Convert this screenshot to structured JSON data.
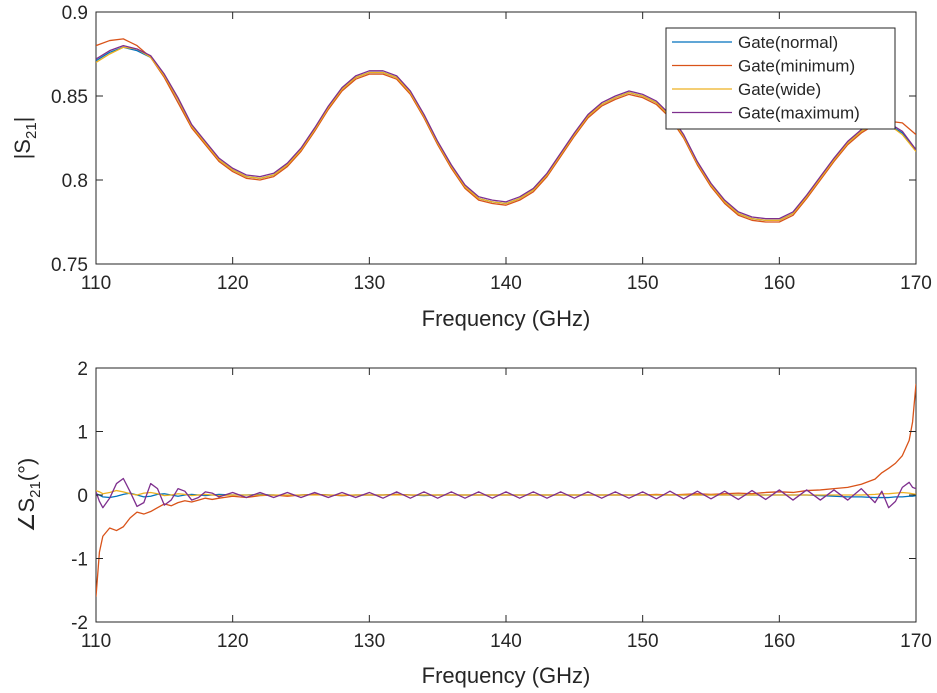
{
  "colors": {
    "normal": "#0072BD",
    "minimum": "#D95319",
    "wide": "#EDB120",
    "maximum": "#7E2F8E",
    "axis": "#262626",
    "background": "#ffffff"
  },
  "legend": {
    "placement": "top-right",
    "entries": [
      "Gate(normal)",
      "Gate(minimum)",
      "Gate(wide)",
      "Gate(maximum)"
    ]
  },
  "chart_data": [
    {
      "type": "line",
      "title": "",
      "xlabel": "Frequency (GHz)",
      "ylabel": "|S21|",
      "ylabel_parts": {
        "prefix": "|S",
        "sub": "21",
        "suffix": "|"
      },
      "xlim": [
        110,
        170
      ],
      "ylim": [
        0.75,
        0.9
      ],
      "xticks": [
        110,
        120,
        130,
        140,
        150,
        160,
        170
      ],
      "xtick_labels": [
        "110",
        "120",
        "130",
        "140",
        "150",
        "160",
        "170"
      ],
      "yticks": [
        0.75,
        0.8,
        0.85,
        0.9
      ],
      "ytick_labels": [
        "0.75",
        "0.8",
        "0.85",
        "0.9"
      ],
      "grid": false,
      "legend": "top-right",
      "x": [
        110,
        111,
        112,
        113,
        114,
        115,
        116,
        117,
        118,
        119,
        120,
        121,
        122,
        123,
        124,
        125,
        126,
        127,
        128,
        129,
        130,
        131,
        132,
        133,
        134,
        135,
        136,
        137,
        138,
        139,
        140,
        141,
        142,
        143,
        144,
        145,
        146,
        147,
        148,
        149,
        150,
        151,
        152,
        153,
        154,
        155,
        156,
        157,
        158,
        159,
        160,
        161,
        162,
        163,
        164,
        165,
        166,
        167,
        168,
        169,
        170
      ],
      "series": [
        {
          "name": "Gate(normal)",
          "values": [
            0.871,
            0.876,
            0.879,
            0.877,
            0.873,
            0.862,
            0.848,
            0.832,
            0.822,
            0.812,
            0.806,
            0.802,
            0.801,
            0.803,
            0.809,
            0.818,
            0.83,
            0.843,
            0.854,
            0.861,
            0.864,
            0.864,
            0.861,
            0.852,
            0.838,
            0.822,
            0.808,
            0.796,
            0.789,
            0.787,
            0.786,
            0.789,
            0.794,
            0.803,
            0.815,
            0.827,
            0.838,
            0.845,
            0.849,
            0.852,
            0.85,
            0.846,
            0.838,
            0.826,
            0.81,
            0.797,
            0.787,
            0.78,
            0.777,
            0.776,
            0.776,
            0.78,
            0.79,
            0.801,
            0.812,
            0.822,
            0.829,
            0.834,
            0.833,
            0.828,
            0.818
          ]
        },
        {
          "name": "Gate(minimum)",
          "values": [
            0.88,
            0.883,
            0.884,
            0.88,
            0.873,
            0.861,
            0.846,
            0.831,
            0.821,
            0.811,
            0.805,
            0.801,
            0.8,
            0.802,
            0.808,
            0.817,
            0.829,
            0.842,
            0.853,
            0.86,
            0.863,
            0.863,
            0.86,
            0.851,
            0.837,
            0.821,
            0.807,
            0.795,
            0.788,
            0.786,
            0.785,
            0.788,
            0.793,
            0.802,
            0.814,
            0.826,
            0.837,
            0.844,
            0.848,
            0.851,
            0.849,
            0.845,
            0.837,
            0.825,
            0.809,
            0.796,
            0.786,
            0.779,
            0.776,
            0.775,
            0.775,
            0.779,
            0.789,
            0.8,
            0.811,
            0.821,
            0.828,
            0.833,
            0.835,
            0.834,
            0.827
          ]
        },
        {
          "name": "Gate(wide)",
          "values": [
            0.87,
            0.875,
            0.879,
            0.878,
            0.873,
            0.862,
            0.848,
            0.832,
            0.822,
            0.812,
            0.806,
            0.802,
            0.801,
            0.803,
            0.809,
            0.818,
            0.83,
            0.843,
            0.854,
            0.861,
            0.864,
            0.864,
            0.861,
            0.852,
            0.838,
            0.822,
            0.808,
            0.796,
            0.789,
            0.787,
            0.786,
            0.789,
            0.794,
            0.803,
            0.815,
            0.827,
            0.838,
            0.845,
            0.849,
            0.852,
            0.85,
            0.846,
            0.838,
            0.826,
            0.81,
            0.797,
            0.787,
            0.78,
            0.777,
            0.776,
            0.776,
            0.78,
            0.79,
            0.801,
            0.812,
            0.822,
            0.829,
            0.834,
            0.833,
            0.827,
            0.817
          ]
        },
        {
          "name": "Gate(maximum)",
          "values": [
            0.872,
            0.877,
            0.88,
            0.878,
            0.874,
            0.863,
            0.849,
            0.833,
            0.823,
            0.813,
            0.807,
            0.803,
            0.802,
            0.804,
            0.81,
            0.819,
            0.831,
            0.844,
            0.855,
            0.862,
            0.865,
            0.865,
            0.862,
            0.853,
            0.839,
            0.823,
            0.809,
            0.797,
            0.79,
            0.788,
            0.787,
            0.79,
            0.795,
            0.804,
            0.816,
            0.828,
            0.839,
            0.846,
            0.85,
            0.853,
            0.851,
            0.847,
            0.839,
            0.827,
            0.811,
            0.798,
            0.788,
            0.781,
            0.778,
            0.777,
            0.777,
            0.781,
            0.791,
            0.802,
            0.813,
            0.823,
            0.83,
            0.835,
            0.834,
            0.829,
            0.818
          ]
        }
      ]
    },
    {
      "type": "line",
      "title": "",
      "xlabel": "Frequency (GHz)",
      "ylabel": "∠S21(°)",
      "ylabel_parts": {
        "prefix": "∠S",
        "sub": "21",
        "suffix": "(°)"
      },
      "xlim": [
        110,
        170
      ],
      "ylim": [
        -2,
        2
      ],
      "xticks": [
        110,
        120,
        130,
        140,
        150,
        160,
        170
      ],
      "xtick_labels": [
        "110",
        "120",
        "130",
        "140",
        "150",
        "160",
        "170"
      ],
      "yticks": [
        -2,
        -1,
        0,
        1,
        2
      ],
      "ytick_labels": [
        "-2",
        "-1",
        "0",
        "1",
        "2"
      ],
      "grid": false,
      "x": [
        110,
        110.25,
        110.5,
        111,
        111.5,
        112,
        112.5,
        113,
        113.5,
        114,
        114.5,
        115,
        115.5,
        116,
        116.5,
        117,
        117.5,
        118,
        118.5,
        119,
        120,
        121,
        122,
        123,
        124,
        125,
        126,
        127,
        128,
        129,
        130,
        131,
        132,
        133,
        134,
        135,
        136,
        137,
        138,
        139,
        140,
        141,
        142,
        143,
        144,
        145,
        146,
        147,
        148,
        149,
        150,
        151,
        152,
        153,
        154,
        155,
        156,
        157,
        158,
        159,
        160,
        161,
        162,
        163,
        164,
        165,
        166,
        167,
        167.5,
        168,
        168.5,
        169,
        169.5,
        169.75,
        170
      ],
      "series": [
        {
          "name": "Gate(normal)",
          "values": [
            0.02,
            0.0,
            -0.03,
            -0.04,
            -0.02,
            0.01,
            0.03,
            0.0,
            -0.03,
            -0.02,
            0.01,
            0.02,
            0.0,
            -0.02,
            0.0,
            0.01,
            0.0,
            -0.01,
            0.0,
            0.01,
            0.0,
            0.0,
            0.01,
            0.0,
            -0.01,
            0.0,
            0.01,
            0.0,
            -0.01,
            0.0,
            0.0,
            0.0,
            0.01,
            0.0,
            -0.01,
            0.0,
            0.0,
            0.0,
            0.0,
            0.0,
            0.0,
            0.0,
            0.0,
            0.0,
            0.0,
            0.0,
            0.0,
            0.0,
            0.0,
            0.0,
            0.0,
            0.0,
            0.0,
            0.0,
            0.0,
            0.0,
            0.0,
            0.0,
            0.0,
            0.0,
            0.0,
            0.0,
            0.0,
            -0.01,
            -0.02,
            -0.03,
            -0.03,
            -0.04,
            -0.04,
            -0.04,
            -0.03,
            -0.03,
            -0.02,
            -0.02,
            -0.01
          ]
        },
        {
          "name": "Gate(minimum)",
          "values": [
            -1.6,
            -0.9,
            -0.65,
            -0.52,
            -0.56,
            -0.5,
            -0.36,
            -0.27,
            -0.3,
            -0.26,
            -0.2,
            -0.14,
            -0.17,
            -0.12,
            -0.09,
            -0.11,
            -0.08,
            -0.05,
            -0.07,
            -0.05,
            -0.02,
            -0.04,
            -0.01,
            0.0,
            -0.02,
            0.0,
            0.01,
            0.0,
            -0.01,
            0.0,
            0.0,
            0.0,
            0.01,
            0.0,
            0.0,
            0.0,
            0.0,
            0.0,
            0.0,
            0.0,
            0.0,
            0.0,
            0.0,
            0.0,
            0.0,
            0.0,
            0.0,
            0.0,
            0.0,
            0.0,
            0.0,
            0.01,
            0.0,
            0.01,
            0.02,
            0.01,
            0.02,
            0.03,
            0.02,
            0.04,
            0.05,
            0.04,
            0.07,
            0.08,
            0.1,
            0.12,
            0.17,
            0.25,
            0.35,
            0.42,
            0.5,
            0.62,
            0.86,
            1.15,
            1.75
          ]
        },
        {
          "name": "Gate(wide)",
          "values": [
            0.07,
            0.05,
            0.02,
            0.04,
            0.07,
            0.05,
            0.02,
            0.0,
            0.03,
            0.04,
            0.02,
            -0.01,
            0.0,
            0.02,
            0.01,
            -0.01,
            0.0,
            0.01,
            0.0,
            -0.01,
            0.0,
            0.0,
            0.0,
            0.0,
            0.0,
            0.0,
            0.0,
            0.0,
            0.0,
            0.0,
            0.0,
            0.0,
            0.0,
            0.0,
            0.0,
            0.0,
            0.0,
            0.0,
            0.0,
            0.0,
            0.0,
            0.0,
            0.0,
            0.0,
            0.0,
            0.0,
            0.0,
            0.0,
            0.0,
            0.0,
            0.0,
            0.0,
            0.0,
            0.0,
            0.0,
            0.0,
            0.0,
            0.0,
            0.0,
            0.0,
            0.0,
            0.0,
            0.0,
            0.0,
            0.0,
            0.0,
            0.0,
            0.01,
            0.02,
            0.02,
            0.03,
            0.04,
            0.03,
            0.02,
            0.01
          ]
        },
        {
          "name": "Gate(maximum)",
          "values": [
            0.05,
            -0.1,
            -0.2,
            -0.05,
            0.18,
            0.26,
            0.05,
            -0.18,
            -0.12,
            0.18,
            0.1,
            -0.16,
            -0.08,
            0.1,
            0.06,
            -0.08,
            -0.04,
            0.05,
            0.03,
            -0.03,
            0.04,
            -0.04,
            0.04,
            -0.04,
            0.04,
            -0.04,
            0.04,
            -0.04,
            0.04,
            -0.04,
            0.04,
            -0.05,
            0.05,
            -0.05,
            0.05,
            -0.05,
            0.05,
            -0.05,
            0.05,
            -0.05,
            0.05,
            -0.05,
            0.05,
            -0.05,
            0.05,
            -0.05,
            0.05,
            -0.05,
            0.05,
            -0.05,
            0.05,
            -0.06,
            0.06,
            -0.06,
            0.06,
            -0.06,
            0.06,
            -0.07,
            0.07,
            -0.07,
            0.08,
            -0.08,
            0.08,
            -0.08,
            0.08,
            -0.08,
            0.1,
            -0.12,
            0.06,
            -0.2,
            -0.1,
            0.12,
            0.2,
            0.12,
            0.1
          ]
        }
      ]
    }
  ]
}
